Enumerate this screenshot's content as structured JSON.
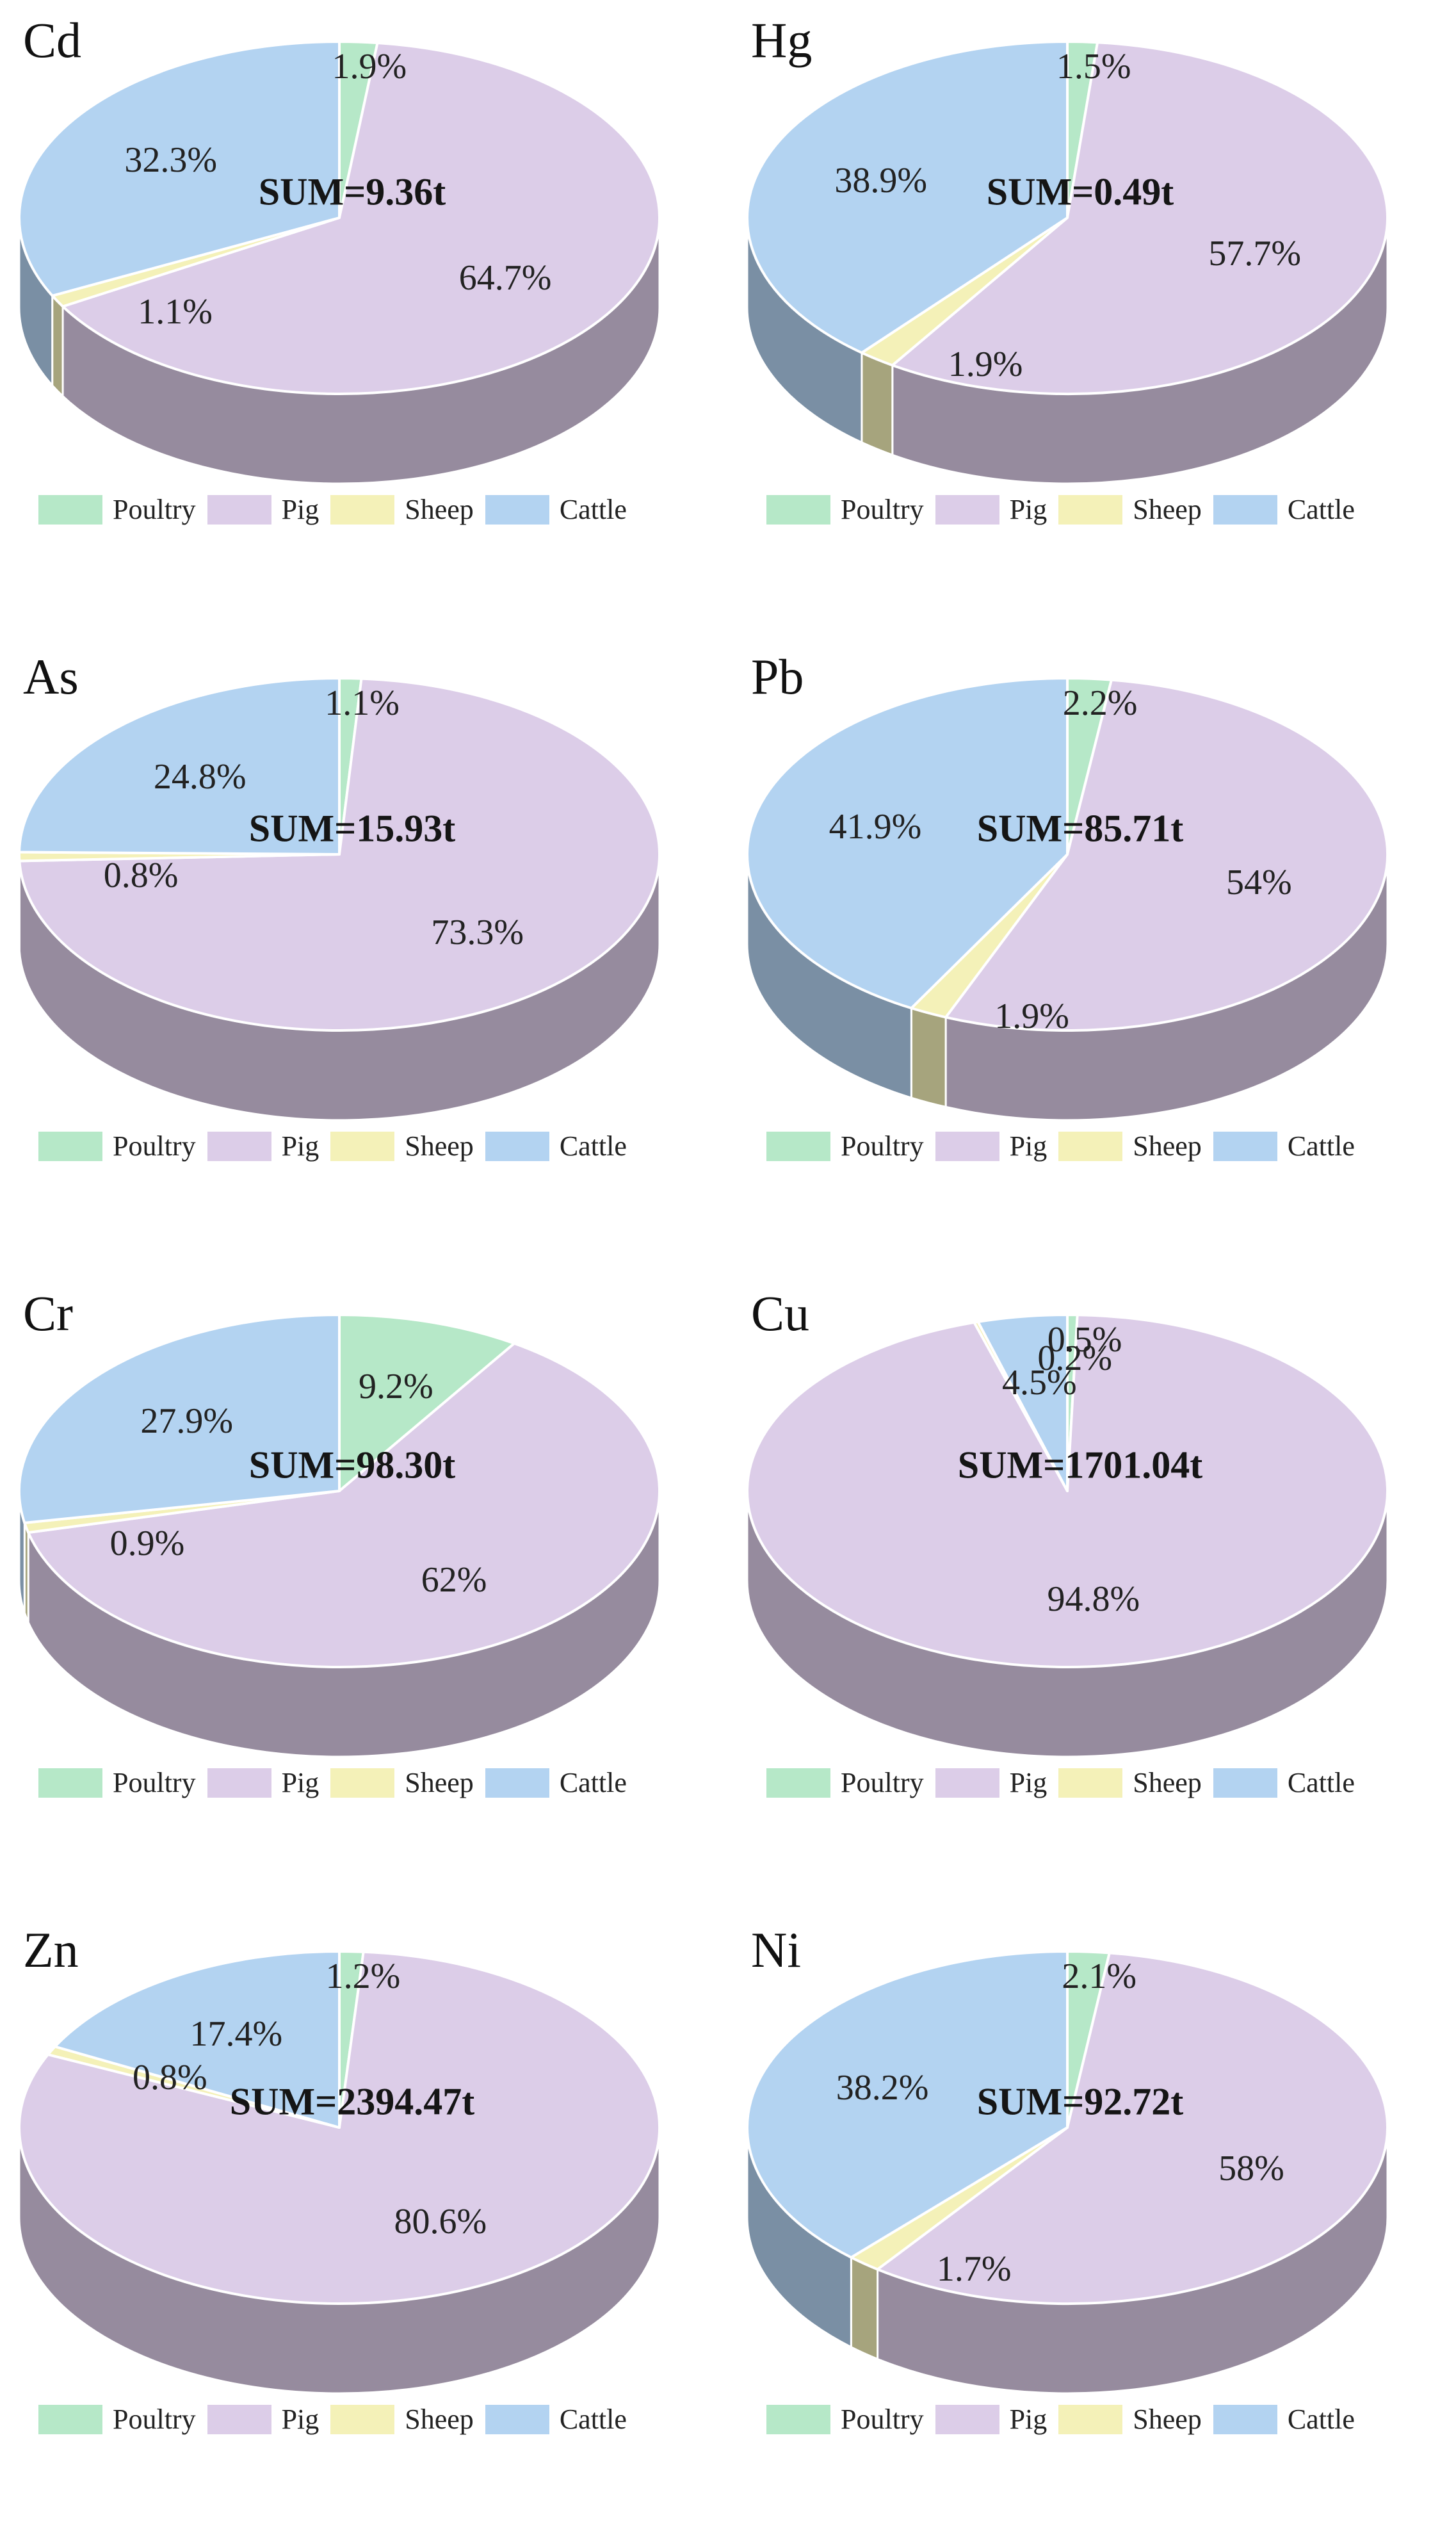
{
  "legend_labels": [
    "Poultry",
    "Pig",
    "Sheep",
    "Cattle"
  ],
  "colors": {
    "poultry": "#b6e8c8",
    "pig": "#dccde8",
    "sheep": "#f4f1b8",
    "cattle": "#b3d3f1",
    "side_shade": "#9a8aa8"
  },
  "chart_data": [
    {
      "type": "pie",
      "title": "Cd",
      "sum_label": "SUM=9.36t",
      "categories": [
        "Poultry",
        "Pig",
        "Sheep",
        "Cattle"
      ],
      "values": [
        1.9,
        64.7,
        1.1,
        32.3
      ],
      "value_labels": [
        "1.9%",
        "64.7%",
        "1.1%",
        "32.3%"
      ]
    },
    {
      "type": "pie",
      "title": "Hg",
      "sum_label": "SUM=0.49t",
      "categories": [
        "Poultry",
        "Pig",
        "Sheep",
        "Cattle"
      ],
      "values": [
        1.5,
        57.7,
        1.9,
        38.9
      ],
      "value_labels": [
        "1.5%",
        "57.7%",
        "1.9%",
        "38.9%"
      ]
    },
    {
      "type": "pie",
      "title": "As",
      "sum_label": "SUM=15.93t",
      "categories": [
        "Poultry",
        "Pig",
        "Sheep",
        "Cattle"
      ],
      "values": [
        1.1,
        73.3,
        0.8,
        24.8
      ],
      "value_labels": [
        "1.1%",
        "73.3%",
        "0.8%",
        "24.8%"
      ]
    },
    {
      "type": "pie",
      "title": "Pb",
      "sum_label": "SUM=85.71t",
      "categories": [
        "Poultry",
        "Pig",
        "Sheep",
        "Cattle"
      ],
      "values": [
        2.2,
        54,
        1.9,
        41.9
      ],
      "value_labels": [
        "2.2%",
        "54%",
        "1.9%",
        "41.9%"
      ]
    },
    {
      "type": "pie",
      "title": "Cr",
      "sum_label": "SUM=98.30t",
      "categories": [
        "Poultry",
        "Pig",
        "Sheep",
        "Cattle"
      ],
      "values": [
        9.2,
        62,
        0.9,
        27.9
      ],
      "value_labels": [
        "9.2%",
        "62%",
        "0.9%",
        "27.9%"
      ]
    },
    {
      "type": "pie",
      "title": "Cu",
      "sum_label": "SUM=1701.04t",
      "categories": [
        "Poultry",
        "Pig",
        "Sheep",
        "Cattle"
      ],
      "values": [
        0.5,
        94.8,
        0.2,
        4.5
      ],
      "value_labels": [
        "0.5%",
        "94.8%",
        "0.2%",
        "4.5%"
      ]
    },
    {
      "type": "pie",
      "title": "Zn",
      "sum_label": "SUM=2394.47t",
      "categories": [
        "Poultry",
        "Pig",
        "Sheep",
        "Cattle"
      ],
      "values": [
        1.2,
        80.6,
        0.8,
        17.4
      ],
      "value_labels": [
        "1.2%",
        "80.6%",
        "0.8%",
        "17.4%"
      ]
    },
    {
      "type": "pie",
      "title": "Ni",
      "sum_label": "SUM=92.72t",
      "categories": [
        "Poultry",
        "Pig",
        "Sheep",
        "Cattle"
      ],
      "values": [
        2.1,
        58,
        1.7,
        38.2
      ],
      "value_labels": [
        "2.1%",
        "58%",
        "1.7%",
        "38.2%"
      ]
    }
  ]
}
